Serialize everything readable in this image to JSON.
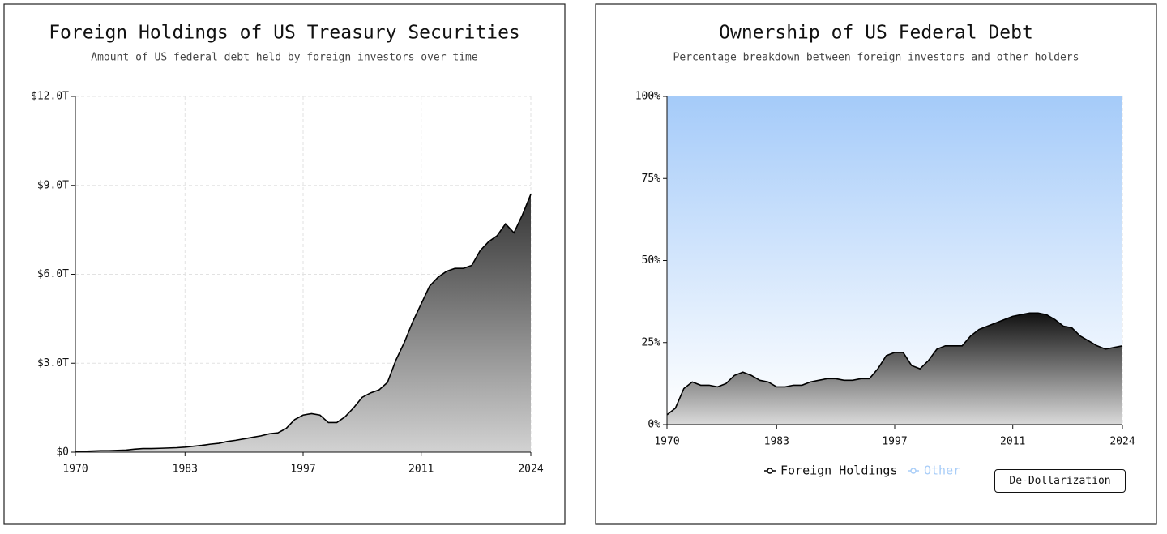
{
  "chart_data": [
    {
      "type": "area",
      "title": "Foreign Holdings of US Treasury Securities",
      "subtitle": "Amount of US federal debt held by foreign investors over time",
      "x": [
        1970,
        1971,
        1972,
        1973,
        1974,
        1975,
        1976,
        1977,
        1978,
        1979,
        1980,
        1981,
        1982,
        1983,
        1984,
        1985,
        1986,
        1987,
        1988,
        1989,
        1990,
        1991,
        1992,
        1993,
        1994,
        1995,
        1996,
        1997,
        1998,
        1999,
        2000,
        2001,
        2002,
        2003,
        2004,
        2005,
        2006,
        2007,
        2008,
        2009,
        2010,
        2011,
        2012,
        2013,
        2014,
        2015,
        2016,
        2017,
        2018,
        2019,
        2020,
        2021,
        2022,
        2023,
        2024
      ],
      "series": [
        {
          "name": "Foreign Holdings",
          "color": "#000000",
          "values": [
            0.01,
            0.03,
            0.04,
            0.05,
            0.05,
            0.06,
            0.07,
            0.1,
            0.12,
            0.12,
            0.13,
            0.14,
            0.15,
            0.17,
            0.2,
            0.23,
            0.27,
            0.3,
            0.36,
            0.4,
            0.45,
            0.5,
            0.55,
            0.62,
            0.65,
            0.8,
            1.1,
            1.25,
            1.3,
            1.25,
            1.0,
            1.0,
            1.2,
            1.5,
            1.85,
            2.0,
            2.1,
            2.35,
            3.1,
            3.7,
            4.4,
            5.0,
            5.6,
            5.9,
            6.1,
            6.2,
            6.2,
            6.3,
            6.8,
            7.1,
            7.3,
            7.7,
            7.4,
            8.0,
            8.7
          ]
        }
      ],
      "xlim": [
        1970,
        2024
      ],
      "xticks": [
        1970,
        1983,
        1997,
        2011,
        2024
      ],
      "ylim": [
        0,
        12
      ],
      "yticks": [
        {
          "value": 0,
          "label": "$0"
        },
        {
          "value": 3,
          "label": "$3.0T"
        },
        {
          "value": 6,
          "label": "$6.0T"
        },
        {
          "value": 9,
          "label": "$9.0T"
        },
        {
          "value": 12,
          "label": "$12.0T"
        }
      ],
      "grid": true
    },
    {
      "type": "stacked-area",
      "title": "Ownership of US Federal Debt",
      "subtitle": "Percentage breakdown between foreign investors and other holders",
      "x": [
        1970,
        1971,
        1972,
        1973,
        1974,
        1975,
        1976,
        1977,
        1978,
        1979,
        1980,
        1981,
        1982,
        1983,
        1984,
        1985,
        1986,
        1987,
        1988,
        1989,
        1990,
        1991,
        1992,
        1993,
        1994,
        1995,
        1996,
        1997,
        1998,
        1999,
        2000,
        2001,
        2002,
        2003,
        2004,
        2005,
        2006,
        2007,
        2008,
        2009,
        2010,
        2011,
        2012,
        2013,
        2014,
        2015,
        2016,
        2017,
        2018,
        2019,
        2020,
        2021,
        2022,
        2023,
        2024
      ],
      "series": [
        {
          "name": "Foreign Holdings",
          "color": "#000000",
          "values": [
            3,
            5,
            11,
            13,
            12,
            12,
            11.5,
            12.5,
            15,
            16,
            15,
            13.5,
            13,
            11.5,
            11.5,
            12,
            12,
            13,
            13.5,
            14,
            14,
            13.5,
            13.5,
            14,
            14,
            17,
            21,
            22,
            22,
            18,
            17,
            19.5,
            23,
            24,
            24,
            24,
            27,
            29,
            30,
            31,
            32,
            33,
            33.5,
            34,
            34,
            33.5,
            32,
            30,
            29.5,
            27,
            25.5,
            24,
            23,
            23.5,
            24
          ]
        },
        {
          "name": "Other",
          "color": "#a8cdf8",
          "values": [
            97,
            95,
            89,
            87,
            88,
            88,
            88.5,
            87.5,
            85,
            84,
            85,
            86.5,
            87,
            88.5,
            88.5,
            88,
            88,
            87,
            86.5,
            86,
            86,
            86.5,
            86.5,
            86,
            86,
            83,
            79,
            78,
            78,
            82,
            83,
            80.5,
            77,
            76,
            76,
            76,
            73,
            71,
            70,
            69,
            68,
            67,
            66.5,
            66,
            66,
            66.5,
            68,
            70,
            70.5,
            73,
            74.5,
            76,
            77,
            76.5,
            76
          ]
        }
      ],
      "xlim": [
        1970,
        2024
      ],
      "xticks": [
        1970,
        1983,
        1997,
        2011,
        2024
      ],
      "ylim": [
        0,
        100
      ],
      "yticks": [
        {
          "value": 0,
          "label": "0%"
        },
        {
          "value": 25,
          "label": "25%"
        },
        {
          "value": 50,
          "label": "50%"
        },
        {
          "value": 75,
          "label": "75%"
        },
        {
          "value": 100,
          "label": "100%"
        }
      ],
      "grid": true,
      "legend": "bottom"
    }
  ],
  "controls": {
    "button": "De-Dollarization"
  }
}
